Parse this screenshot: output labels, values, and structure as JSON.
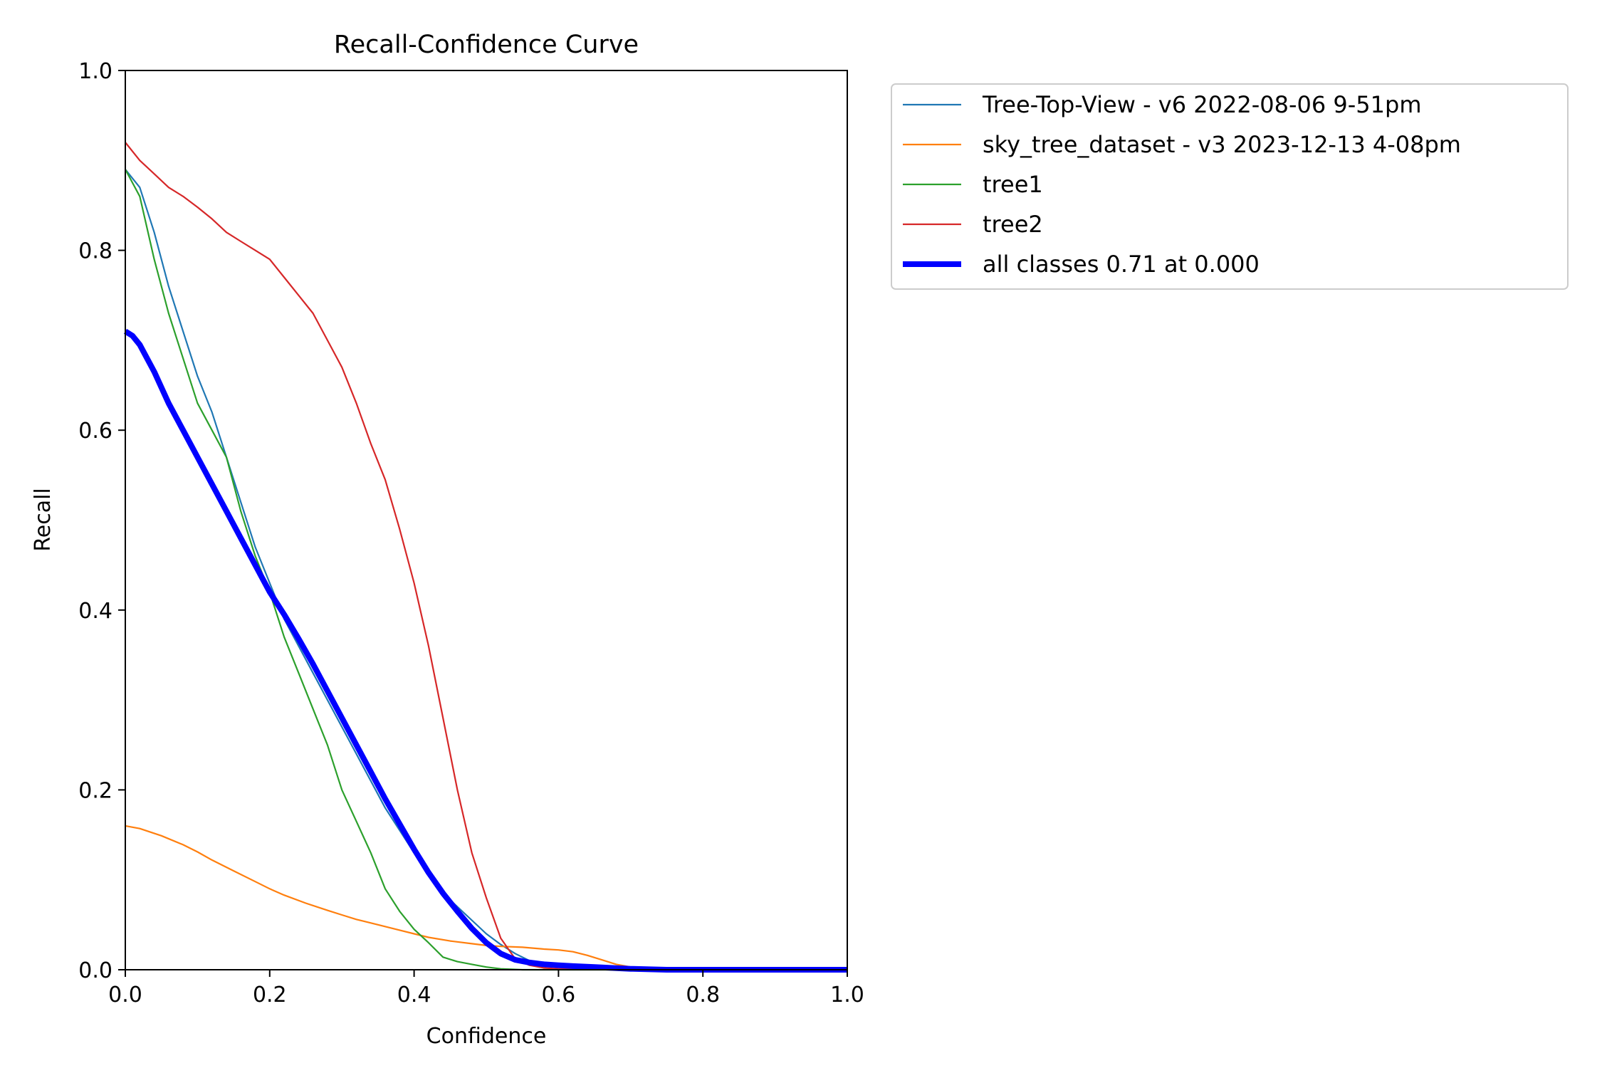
{
  "chart_data": {
    "type": "line",
    "title": "Recall-Confidence Curve",
    "xlabel": "Confidence",
    "ylabel": "Recall",
    "xlim": [
      0,
      1
    ],
    "ylim": [
      0,
      1
    ],
    "xticks": [
      "0.0",
      "0.2",
      "0.4",
      "0.6",
      "0.8",
      "1.0"
    ],
    "yticks": [
      "0.0",
      "0.2",
      "0.4",
      "0.6",
      "0.8",
      "1.0"
    ],
    "grid": false,
    "legend_position": "outside-top-right",
    "series": [
      {
        "name": "Tree-Top-View - v6 2022-08-06 9-51pm",
        "color": "#1f77b4",
        "x": [
          0.0,
          0.02,
          0.04,
          0.06,
          0.08,
          0.1,
          0.12,
          0.14,
          0.16,
          0.18,
          0.2,
          0.22,
          0.24,
          0.26,
          0.28,
          0.3,
          0.32,
          0.34,
          0.36,
          0.38,
          0.4,
          0.42,
          0.44,
          0.46,
          0.48,
          0.5,
          0.52,
          0.54,
          0.56,
          0.58,
          0.6,
          0.65,
          0.7,
          0.8,
          0.9,
          1.0
        ],
        "y": [
          0.89,
          0.87,
          0.82,
          0.76,
          0.71,
          0.66,
          0.62,
          0.57,
          0.52,
          0.47,
          0.43,
          0.39,
          0.36,
          0.33,
          0.3,
          0.27,
          0.24,
          0.21,
          0.18,
          0.155,
          0.13,
          0.105,
          0.085,
          0.07,
          0.055,
          0.04,
          0.028,
          0.018,
          0.01,
          0.006,
          0.004,
          0.002,
          0.001,
          0.0,
          0.0,
          0.0
        ]
      },
      {
        "name": "sky_tree_dataset - v3 2023-12-13 4-08pm",
        "color": "#ff7f0e",
        "x": [
          0.0,
          0.02,
          0.05,
          0.08,
          0.1,
          0.12,
          0.15,
          0.18,
          0.2,
          0.22,
          0.25,
          0.28,
          0.3,
          0.32,
          0.35,
          0.38,
          0.4,
          0.42,
          0.45,
          0.48,
          0.5,
          0.52,
          0.55,
          0.58,
          0.6,
          0.62,
          0.64,
          0.66,
          0.68,
          0.7,
          0.72,
          0.75,
          0.8,
          0.9,
          1.0
        ],
        "y": [
          0.16,
          0.157,
          0.149,
          0.139,
          0.131,
          0.122,
          0.11,
          0.098,
          0.09,
          0.083,
          0.074,
          0.066,
          0.061,
          0.056,
          0.05,
          0.044,
          0.04,
          0.036,
          0.032,
          0.029,
          0.027,
          0.026,
          0.025,
          0.023,
          0.022,
          0.02,
          0.016,
          0.011,
          0.006,
          0.003,
          0.001,
          0.0,
          0.0,
          0.0,
          0.0
        ]
      },
      {
        "name": "tree1",
        "color": "#2ca02c",
        "x": [
          0.0,
          0.02,
          0.04,
          0.06,
          0.08,
          0.1,
          0.12,
          0.14,
          0.16,
          0.18,
          0.2,
          0.22,
          0.24,
          0.26,
          0.28,
          0.3,
          0.32,
          0.34,
          0.36,
          0.38,
          0.4,
          0.42,
          0.44,
          0.46,
          0.48,
          0.5,
          0.52,
          0.55,
          0.6,
          0.7,
          0.8,
          0.9,
          1.0
        ],
        "y": [
          0.89,
          0.86,
          0.79,
          0.73,
          0.68,
          0.63,
          0.6,
          0.57,
          0.51,
          0.46,
          0.42,
          0.37,
          0.33,
          0.29,
          0.25,
          0.2,
          0.165,
          0.13,
          0.09,
          0.065,
          0.045,
          0.03,
          0.014,
          0.009,
          0.006,
          0.003,
          0.001,
          0.0,
          0.0,
          0.0,
          0.0,
          0.0,
          0.0
        ]
      },
      {
        "name": "tree2",
        "color": "#d62728",
        "x": [
          0.0,
          0.02,
          0.04,
          0.06,
          0.08,
          0.1,
          0.12,
          0.14,
          0.16,
          0.18,
          0.2,
          0.22,
          0.24,
          0.26,
          0.28,
          0.3,
          0.32,
          0.34,
          0.36,
          0.38,
          0.4,
          0.42,
          0.44,
          0.46,
          0.48,
          0.5,
          0.52,
          0.54,
          0.56,
          0.58,
          0.6,
          0.7,
          0.8,
          0.9,
          1.0
        ],
        "y": [
          0.92,
          0.9,
          0.885,
          0.87,
          0.86,
          0.848,
          0.835,
          0.82,
          0.81,
          0.8,
          0.79,
          0.77,
          0.75,
          0.73,
          0.7,
          0.67,
          0.63,
          0.585,
          0.545,
          0.49,
          0.43,
          0.36,
          0.28,
          0.2,
          0.13,
          0.08,
          0.035,
          0.012,
          0.005,
          0.002,
          0.001,
          0.0,
          0.0,
          0.0,
          0.0
        ]
      },
      {
        "name": "all classes 0.71 at 0.000",
        "color": "#0000ff",
        "width": 8,
        "x": [
          0.0,
          0.01,
          0.02,
          0.04,
          0.06,
          0.08,
          0.1,
          0.12,
          0.14,
          0.16,
          0.18,
          0.2,
          0.22,
          0.24,
          0.26,
          0.28,
          0.3,
          0.32,
          0.34,
          0.36,
          0.38,
          0.4,
          0.42,
          0.44,
          0.46,
          0.48,
          0.5,
          0.52,
          0.54,
          0.56,
          0.58,
          0.6,
          0.62,
          0.65,
          0.7,
          0.75,
          0.8,
          0.9,
          1.0
        ],
        "y": [
          0.71,
          0.705,
          0.695,
          0.665,
          0.63,
          0.6,
          0.57,
          0.54,
          0.51,
          0.48,
          0.45,
          0.42,
          0.395,
          0.368,
          0.34,
          0.31,
          0.28,
          0.25,
          0.22,
          0.19,
          0.162,
          0.134,
          0.108,
          0.085,
          0.065,
          0.046,
          0.03,
          0.018,
          0.011,
          0.008,
          0.006,
          0.005,
          0.004,
          0.003,
          0.001,
          0.0,
          0.0,
          0.0,
          0.0
        ]
      }
    ]
  }
}
